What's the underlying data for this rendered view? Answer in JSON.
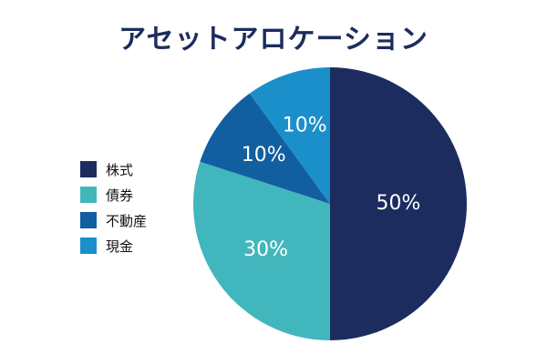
{
  "chart_data": {
    "type": "pie",
    "title": "アセットアロケーション",
    "categories": [
      "株式",
      "債券",
      "不動産",
      "現金"
    ],
    "values": [
      50,
      30,
      10,
      10
    ],
    "value_labels": [
      "50%",
      "30%",
      "10%",
      "10%"
    ],
    "colors": [
      "#1c2c5e",
      "#42b6bd",
      "#115ea0",
      "#1b8fc9"
    ],
    "start": "12-o'clock",
    "direction": "clockwise",
    "legend_position": "left"
  }
}
